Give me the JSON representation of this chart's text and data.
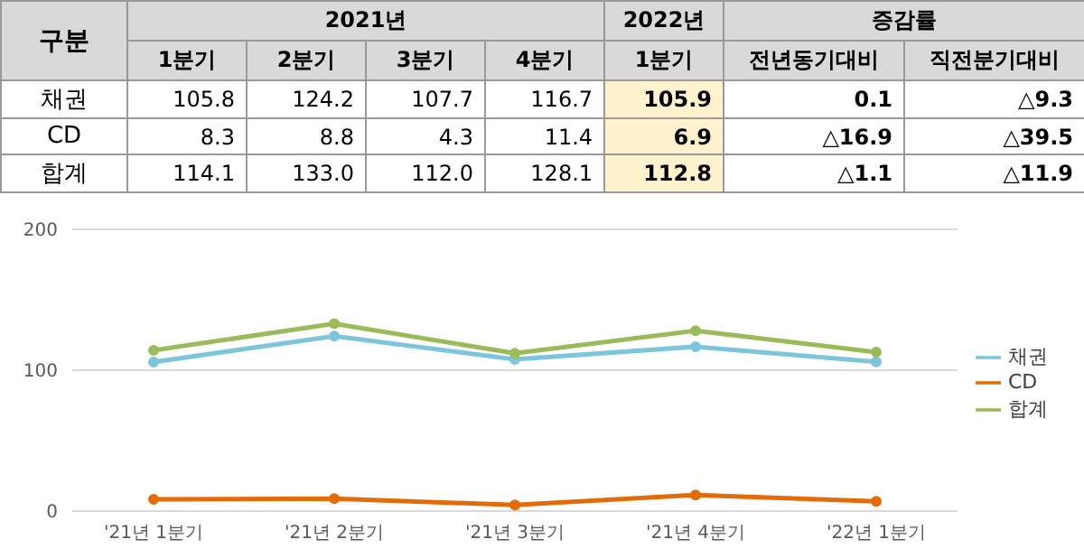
{
  "chart_data": {
    "type": "line",
    "categories": [
      "'21년 1분기",
      "'21년 2분기",
      "'21년 3분기",
      "'21년 4분기",
      "'22년 1분기"
    ],
    "series": [
      {
        "name": "채권",
        "color": "#7cc6dc",
        "values": [
          105.8,
          124.2,
          107.7,
          116.7,
          105.9
        ]
      },
      {
        "name": "CD",
        "color": "#e36c0a",
        "values": [
          8.3,
          8.8,
          4.3,
          11.4,
          6.9
        ]
      },
      {
        "name": "합계",
        "color": "#9bbb59",
        "values": [
          114.1,
          133.0,
          112.0,
          128.1,
          112.8
        ]
      }
    ],
    "ylim": [
      0,
      200
    ],
    "yticks": [
      0,
      100,
      200
    ],
    "grid": "y",
    "legend": "right",
    "marker": "circle",
    "line_style": "solid",
    "annotations": [
      "구분",
      "2021년",
      "2022년",
      "증감률",
      "1분기",
      "2분기",
      "3분기",
      "4분기",
      "1분기",
      "전년동기대비",
      "직전분기대비",
      "105.8",
      "124.2",
      "107.7",
      "116.7",
      "105.9",
      "0.1",
      "△9.3",
      "8.3",
      "8.8",
      "4.3",
      "11.4",
      "6.9",
      "△16.9",
      "△39.5",
      "114.1",
      "133.0",
      "112.0",
      "128.1",
      "112.8",
      "△1.1",
      "△11.9"
    ]
  }
}
